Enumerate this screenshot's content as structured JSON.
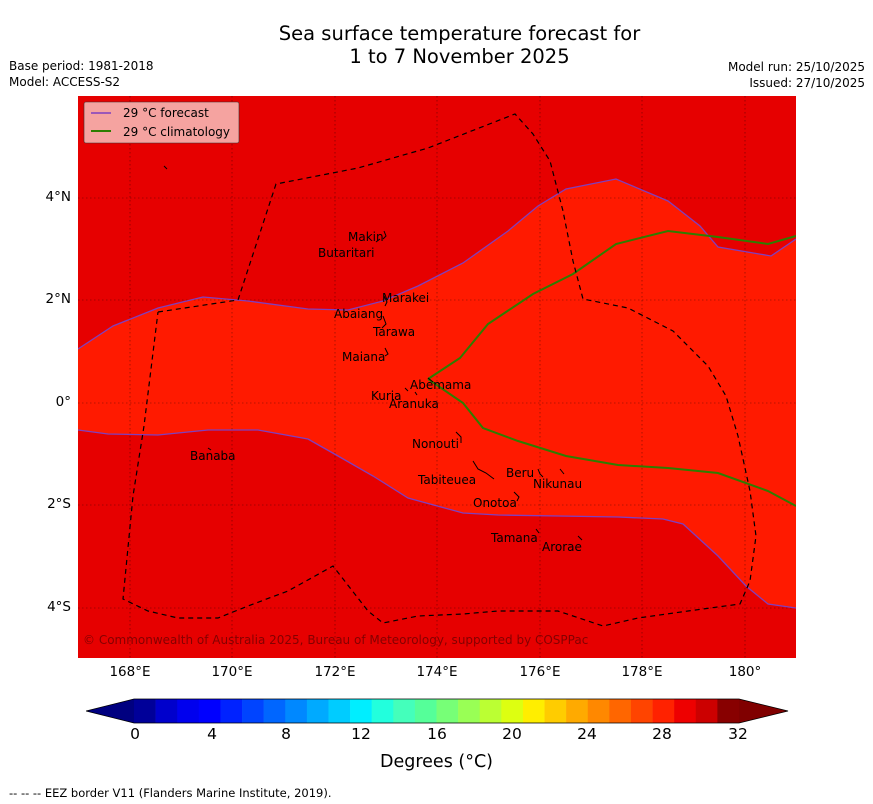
{
  "title_line1": "Sea surface temperature forecast for",
  "title_line2": "1 to 7 November 2025",
  "base_period": "Base period: 1981-2018",
  "model": "Model: ACCESS-S2",
  "model_run": "Model run: 25/10/2025",
  "issued": "Issued: 27/10/2025",
  "legend": {
    "forecast": "29 °C  forecast",
    "climatology": "29 °C  climatology"
  },
  "y_ticks": [
    "4°N",
    "2°N",
    "0°",
    "2°S",
    "4°S"
  ],
  "x_ticks": [
    "168°E",
    "170°E",
    "172°E",
    "174°E",
    "176°E",
    "178°E",
    "180°"
  ],
  "islands": [
    "Makin",
    "Butaritari",
    "Marakei",
    "Abaiang",
    "Tarawa",
    "Maiana",
    "Abemama",
    "Kuria",
    "Aranuka",
    "Nonouti",
    "Banaba",
    "Tabiteuea",
    "Beru",
    "Nikunau",
    "Onotoa",
    "Tamana",
    "Arorae"
  ],
  "copyright": "© Commonwealth of Australia 2025, Bureau of Meteorology, supported by COSPPac",
  "colorbar": {
    "ticks": [
      "0",
      "4",
      "8",
      "12",
      "16",
      "20",
      "24",
      "28",
      "32"
    ],
    "label": "Degrees (°C)",
    "colors": [
      "#000099",
      "#0000cc",
      "#0000ee",
      "#0000ff",
      "#0022ff",
      "#0044ff",
      "#0066ff",
      "#0088ff",
      "#00aaff",
      "#00ccff",
      "#00eeff",
      "#22ffdd",
      "#44ffbb",
      "#55ff99",
      "#77ff77",
      "#99ff55",
      "#bbff33",
      "#ddff11",
      "#ffee00",
      "#ffcc00",
      "#ffaa00",
      "#ff8800",
      "#ff6600",
      "#ff4400",
      "#ff2200",
      "#ee0000",
      "#cc0000",
      "#880000"
    ],
    "under_color": "#000080",
    "over_color": "#800000"
  },
  "map_colors": {
    "warm": "#e60000",
    "mid": "#ff1a00",
    "forecast_line": "#7f3fbf",
    "climatology_line": "#2e7d00"
  },
  "footer": "--  --  -- EEZ border V11 (Flanders Marine Institute, 2019)."
}
